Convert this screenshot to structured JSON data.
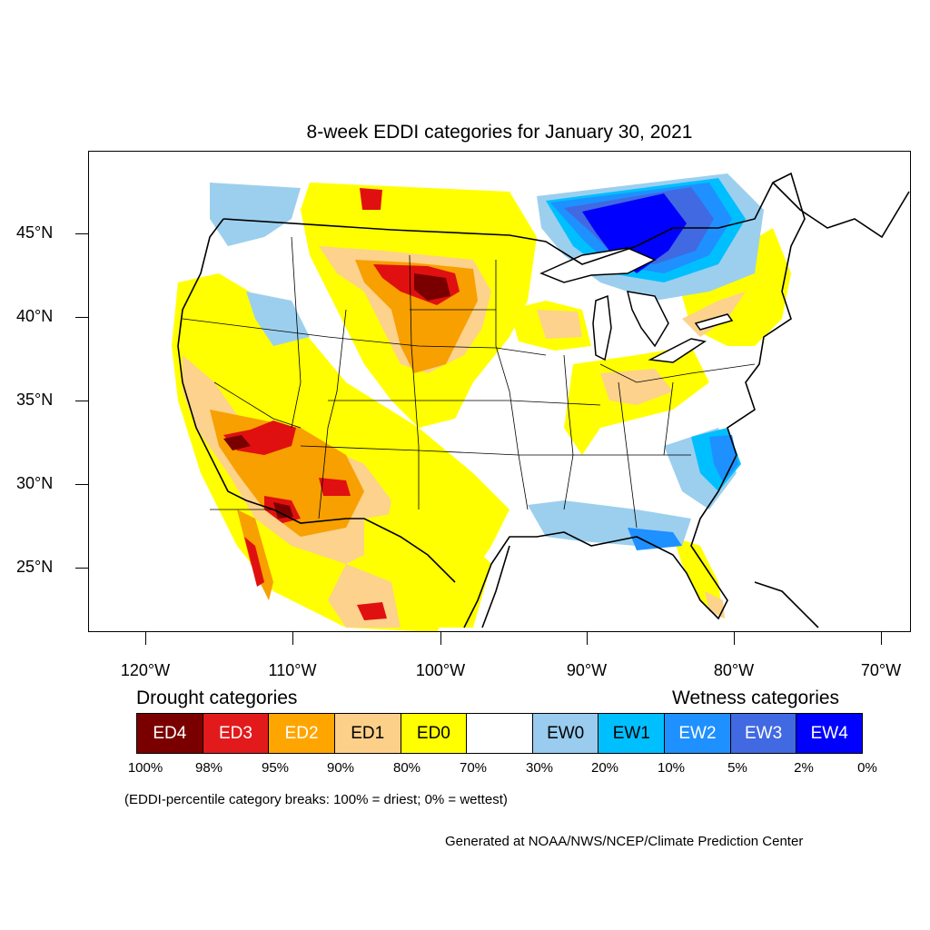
{
  "title": "8-week EDDI categories for January 30, 2021",
  "map": {
    "lat_labels": [
      "45°N",
      "40°N",
      "35°N",
      "30°N",
      "25°N"
    ],
    "lon_labels": [
      "120°W",
      "110°W",
      "100°W",
      "90°W",
      "80°W",
      "70°W"
    ],
    "colors": {
      "ED4": "#7a0000",
      "ED3": "#e01010",
      "ED2": "#f7a000",
      "ED1": "#fcd28c",
      "ED0": "#ffff00",
      "neutral": "#ffffff",
      "EW0": "#9ccfee",
      "EW1": "#00bfff",
      "EW2": "#1e90ff",
      "EW3": "#4169e1",
      "EW4": "#0000ff"
    }
  },
  "legend": {
    "drought_heading": "Drought categories",
    "wetness_heading": "Wetness categories",
    "categories": [
      {
        "label": "ED4",
        "color": "#7a0000",
        "text_color": "#ffffff"
      },
      {
        "label": "ED3",
        "color": "#e31a1c",
        "text_color": "#ffffff"
      },
      {
        "label": "ED2",
        "color": "#ffa500",
        "text_color": "#ffffff"
      },
      {
        "label": "ED1",
        "color": "#fdd08a",
        "text_color": "#000000"
      },
      {
        "label": "ED0",
        "color": "#ffff00",
        "text_color": "#000000"
      },
      {
        "label": "",
        "color": "#ffffff",
        "text_color": "#000000"
      },
      {
        "label": "EW0",
        "color": "#99ccee",
        "text_color": "#000000"
      },
      {
        "label": "EW1",
        "color": "#00bfff",
        "text_color": "#000000"
      },
      {
        "label": "EW2",
        "color": "#1e90ff",
        "text_color": "#ffffff"
      },
      {
        "label": "EW3",
        "color": "#4169e1",
        "text_color": "#ffffff"
      },
      {
        "label": "EW4",
        "color": "#0000ff",
        "text_color": "#ffffff"
      }
    ],
    "percent_labels": [
      "100%",
      "98%",
      "95%",
      "90%",
      "80%",
      "70%",
      "30%",
      "20%",
      "10%",
      "5%",
      "2%",
      "0%"
    ]
  },
  "note": "(EDDI-percentile category breaks: 100% = driest; 0% = wettest)",
  "credit": "Generated at NOAA/NWS/NCEP/Climate Prediction Center"
}
